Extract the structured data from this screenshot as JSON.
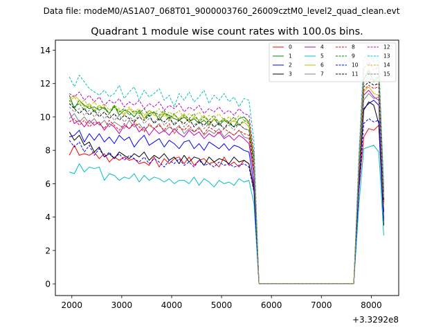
{
  "figure": {
    "suptitle": "Data file: modeM0/AS1A07_068T01_9000003760_26009cztM0_level2_quad_clean.evt"
  },
  "chart_data": {
    "type": "line",
    "title": "Quadrant 1 module wise count rates with 100.0s bins.",
    "xlabel": "",
    "ylabel": "",
    "x_offset_label": "+3.3292e8",
    "xlim": [
      1670,
      8550
    ],
    "ylim": [
      -0.7,
      14.6
    ],
    "xticks": [
      2000,
      3000,
      4000,
      5000,
      6000,
      7000,
      8000
    ],
    "yticks": [
      0,
      2,
      4,
      6,
      8,
      10,
      12,
      14
    ],
    "grid": false,
    "legend_position": "top-right",
    "x": [
      1950,
      2050,
      2150,
      2250,
      2350,
      2450,
      2550,
      2650,
      2750,
      2850,
      2950,
      3050,
      3150,
      3250,
      3350,
      3450,
      3550,
      3650,
      3750,
      3850,
      3950,
      4050,
      4150,
      4250,
      4350,
      4450,
      4550,
      4650,
      4750,
      4850,
      4950,
      5050,
      5150,
      5250,
      5350,
      5450,
      5550,
      5650,
      5750,
      5850,
      5950,
      6050,
      6150,
      6250,
      6350,
      6450,
      6550,
      6650,
      6750,
      6850,
      6950,
      7050,
      7150,
      7250,
      7350,
      7450,
      7550,
      7650,
      7750,
      7850,
      7950,
      8050,
      8150,
      8250
    ],
    "series": [
      {
        "name": "0",
        "color": "#ff0000",
        "dash": "solid",
        "values": [
          7.7,
          8.3,
          7.7,
          7.8,
          7.7,
          7.9,
          7.5,
          7.8,
          7.3,
          7.6,
          7.4,
          7.6,
          7.4,
          7.5,
          7.2,
          7.3,
          7.1,
          7.6,
          7.0,
          7.5,
          7.2,
          7.5,
          7.6,
          7.2,
          7.6,
          7.1,
          7.4,
          7.5,
          7.2,
          7.3,
          7.0,
          7.6,
          7.1,
          7.3,
          7.0,
          7.4,
          7.2,
          5.8,
          0.02,
          0.02,
          0.02,
          0.02,
          0.02,
          0.02,
          0.02,
          0.02,
          0.02,
          0.02,
          0.02,
          0.02,
          0.02,
          0.02,
          0.02,
          0.02,
          0.02,
          0.02,
          0.02,
          0.02,
          5.5,
          8.8,
          9.3,
          9.2,
          9.5,
          3.9
        ]
      },
      {
        "name": "1",
        "color": "#008000",
        "dash": "solid",
        "values": [
          11.3,
          10.5,
          11.0,
          10.7,
          10.5,
          10.6,
          10.4,
          10.6,
          10.2,
          10.7,
          10.1,
          10.4,
          10.3,
          10.0,
          10.4,
          9.9,
          10.2,
          10.3,
          9.8,
          10.2,
          10.1,
          9.9,
          9.8,
          10.0,
          9.7,
          9.9,
          9.6,
          9.8,
          9.5,
          9.9,
          9.5,
          9.8,
          9.6,
          9.4,
          9.9,
          10.0,
          9.7,
          7.5,
          0.02,
          0.02,
          0.02,
          0.02,
          0.02,
          0.02,
          0.02,
          0.02,
          0.02,
          0.02,
          0.02,
          0.02,
          0.02,
          0.02,
          0.02,
          0.02,
          0.02,
          0.02,
          0.02,
          0.02,
          6.8,
          12.2,
          12.8,
          12.1,
          12.4,
          5.5
        ]
      },
      {
        "name": "2",
        "color": "#0000ff",
        "dash": "solid",
        "values": [
          8.8,
          8.9,
          9.2,
          8.5,
          9.0,
          8.6,
          9.0,
          8.5,
          8.8,
          8.4,
          8.9,
          8.6,
          8.8,
          8.2,
          8.6,
          8.9,
          8.3,
          8.5,
          8.7,
          8.2,
          8.6,
          8.4,
          8.1,
          8.5,
          8.6,
          8.1,
          8.4,
          8.0,
          8.5,
          8.3,
          8.1,
          8.4,
          8.0,
          8.3,
          8.2,
          8.0,
          7.9,
          6.0,
          0.02,
          0.02,
          0.02,
          0.02,
          0.02,
          0.02,
          0.02,
          0.02,
          0.02,
          0.02,
          0.02,
          0.02,
          0.02,
          0.02,
          0.02,
          0.02,
          0.02,
          0.02,
          0.02,
          0.02,
          5.8,
          10.5,
          10.8,
          11.0,
          10.7,
          4.3
        ]
      },
      {
        "name": "3",
        "color": "#000000",
        "dash": "solid",
        "values": [
          9.1,
          8.6,
          8.9,
          8.3,
          8.5,
          7.9,
          8.2,
          7.6,
          7.8,
          7.5,
          7.9,
          7.7,
          7.5,
          7.8,
          7.6,
          7.9,
          7.4,
          7.7,
          7.5,
          7.8,
          7.4,
          7.6,
          7.2,
          7.7,
          7.3,
          7.6,
          7.5,
          7.1,
          7.6,
          7.3,
          7.5,
          7.4,
          7.2,
          7.6,
          7.3,
          7.4,
          7.2,
          5.6,
          0.02,
          0.02,
          0.02,
          0.02,
          0.02,
          0.02,
          0.02,
          0.02,
          0.02,
          0.02,
          0.02,
          0.02,
          0.02,
          0.02,
          0.02,
          0.02,
          0.02,
          0.02,
          0.02,
          0.02,
          5.9,
          10.4,
          10.9,
          10.7,
          9.6,
          3.5
        ]
      },
      {
        "name": "4",
        "color": "#bf00bf",
        "dash": "solid",
        "values": [
          10.3,
          9.6,
          9.8,
          9.4,
          9.8,
          9.5,
          9.7,
          9.2,
          9.6,
          9.4,
          9.0,
          9.5,
          9.3,
          9.6,
          9.1,
          9.4,
          8.9,
          9.3,
          9.0,
          9.2,
          8.9,
          9.3,
          9.0,
          8.8,
          9.2,
          8.9,
          9.1,
          8.7,
          9.0,
          8.8,
          9.1,
          8.7,
          8.9,
          8.6,
          8.9,
          8.7,
          8.4,
          6.5,
          0.02,
          0.02,
          0.02,
          0.02,
          0.02,
          0.02,
          0.02,
          0.02,
          0.02,
          0.02,
          0.02,
          0.02,
          0.02,
          0.02,
          0.02,
          0.02,
          0.02,
          0.02,
          0.02,
          0.02,
          6.2,
          11.3,
          11.6,
          11.2,
          11.0,
          4.6
        ]
      },
      {
        "name": "5",
        "color": "#00bfbf",
        "dash": "solid",
        "values": [
          6.7,
          6.6,
          7.2,
          6.7,
          7.0,
          6.9,
          7.0,
          6.2,
          6.6,
          6.5,
          6.2,
          6.4,
          6.3,
          6.6,
          6.1,
          6.5,
          6.2,
          6.4,
          6.3,
          6.1,
          6.3,
          6.0,
          6.2,
          6.2,
          6.0,
          6.4,
          5.9,
          6.3,
          6.1,
          5.8,
          6.2,
          6.0,
          6.1,
          5.9,
          6.3,
          6.1,
          6.2,
          4.8,
          0.02,
          0.02,
          0.02,
          0.02,
          0.02,
          0.02,
          0.02,
          0.02,
          0.02,
          0.02,
          0.02,
          0.02,
          0.02,
          0.02,
          0.02,
          0.02,
          0.02,
          0.02,
          0.02,
          0.02,
          4.6,
          8.1,
          8.2,
          8.3,
          7.9,
          2.9
        ]
      },
      {
        "name": "6",
        "color": "#bfbf00",
        "dash": "solid",
        "values": [
          11.1,
          11.3,
          11.0,
          10.6,
          10.8,
          10.4,
          10.7,
          10.5,
          10.2,
          10.6,
          10.4,
          10.1,
          10.5,
          10.2,
          10.3,
          9.9,
          10.4,
          10.1,
          10.0,
          10.3,
          9.8,
          10.1,
          9.9,
          10.2,
          9.7,
          10.0,
          9.8,
          10.1,
          9.6,
          9.9,
          9.7,
          9.9,
          9.6,
          9.8,
          9.5,
          9.7,
          9.4,
          7.3,
          0.02,
          0.02,
          0.02,
          0.02,
          0.02,
          0.02,
          0.02,
          0.02,
          0.02,
          0.02,
          0.02,
          0.02,
          0.02,
          0.02,
          0.02,
          0.02,
          0.02,
          0.02,
          0.02,
          0.02,
          6.6,
          11.5,
          11.8,
          11.4,
          11.3,
          4.6
        ]
      },
      {
        "name": "7",
        "color": "#808080",
        "dash": "solid",
        "values": [
          9.9,
          10.2,
          9.7,
          10.0,
          9.6,
          9.9,
          9.5,
          9.8,
          9.4,
          9.7,
          9.5,
          9.3,
          9.8,
          9.4,
          9.6,
          9.2,
          9.5,
          9.3,
          9.6,
          9.1,
          9.4,
          9.2,
          9.5,
          9.0,
          9.3,
          9.1,
          9.4,
          8.9,
          9.2,
          9.0,
          9.3,
          8.8,
          9.1,
          8.9,
          9.2,
          8.8,
          8.7,
          6.7,
          0.02,
          0.02,
          0.02,
          0.02,
          0.02,
          0.02,
          0.02,
          0.02,
          0.02,
          0.02,
          0.02,
          0.02,
          0.02,
          0.02,
          0.02,
          0.02,
          0.02,
          0.02,
          0.02,
          0.02,
          6.3,
          11.0,
          11.4,
          11.1,
          11.2,
          4.8
        ]
      },
      {
        "name": "8",
        "color": "#ff0000",
        "dash": "dashed",
        "values": [
          9.7,
          9.9,
          9.5,
          9.8,
          9.4,
          9.7,
          9.6,
          9.3,
          9.8,
          9.5,
          9.2,
          9.6,
          9.3,
          9.7,
          9.4,
          9.1,
          9.6,
          9.3,
          9.5,
          9.2,
          9.6,
          9.0,
          9.4,
          9.2,
          9.5,
          9.1,
          9.3,
          9.0,
          9.4,
          9.2,
          9.0,
          9.3,
          9.1,
          8.9,
          9.2,
          9.0,
          8.9,
          6.8,
          0.02,
          0.02,
          0.02,
          0.02,
          0.02,
          0.02,
          0.02,
          0.02,
          0.02,
          0.02,
          0.02,
          0.02,
          0.02,
          0.02,
          0.02,
          0.02,
          0.02,
          0.02,
          0.02,
          0.02,
          6.5,
          11.6,
          11.9,
          11.7,
          11.8,
          4.9
        ]
      },
      {
        "name": "9",
        "color": "#008000",
        "dash": "dashed",
        "values": [
          11.0,
          10.6,
          10.8,
          10.4,
          10.7,
          10.3,
          10.6,
          10.5,
          10.2,
          10.6,
          10.3,
          10.5,
          10.1,
          10.4,
          10.2,
          10.5,
          10.0,
          10.3,
          10.1,
          10.4,
          9.9,
          10.2,
          9.8,
          10.1,
          9.9,
          10.2,
          9.7,
          10.0,
          9.8,
          10.1,
          9.6,
          9.9,
          9.7,
          10.0,
          9.5,
          9.8,
          9.6,
          7.4,
          0.02,
          0.02,
          0.02,
          0.02,
          0.02,
          0.02,
          0.02,
          0.02,
          0.02,
          0.02,
          0.02,
          0.02,
          0.02,
          0.02,
          0.02,
          0.02,
          0.02,
          0.02,
          0.02,
          0.02,
          6.8,
          12.3,
          12.7,
          12.2,
          12.5,
          5.2
        ]
      },
      {
        "name": "10",
        "color": "#0000ff",
        "dash": "dashed",
        "values": [
          8.6,
          8.2,
          8.5,
          7.9,
          8.3,
          7.7,
          8.1,
          7.6,
          7.9,
          7.5,
          7.8,
          7.4,
          7.7,
          7.5,
          7.3,
          7.6,
          7.2,
          7.5,
          7.3,
          7.0,
          7.4,
          7.2,
          7.5,
          7.1,
          7.3,
          7.0,
          7.4,
          7.1,
          7.2,
          7.0,
          7.3,
          7.1,
          7.2,
          7.0,
          7.1,
          7.2,
          7.0,
          5.5,
          0.02,
          0.02,
          0.02,
          0.02,
          0.02,
          0.02,
          0.02,
          0.02,
          0.02,
          0.02,
          0.02,
          0.02,
          0.02,
          0.02,
          0.02,
          0.02,
          0.02,
          0.02,
          0.02,
          0.02,
          5.4,
          9.6,
          9.9,
          9.7,
          9.8,
          3.8
        ]
      },
      {
        "name": "11",
        "color": "#000000",
        "dash": "dashed",
        "values": [
          10.8,
          10.5,
          10.2,
          10.5,
          10.1,
          10.4,
          10.0,
          10.3,
          9.9,
          10.2,
          9.8,
          10.1,
          9.9,
          9.7,
          10.0,
          9.8,
          10.1,
          9.6,
          9.9,
          9.7,
          10.0,
          9.5,
          9.8,
          9.6,
          9.9,
          9.4,
          9.7,
          9.5,
          9.8,
          9.4,
          9.6,
          9.3,
          9.7,
          9.4,
          9.6,
          9.3,
          9.2,
          7.1,
          0.02,
          0.02,
          0.02,
          0.02,
          0.02,
          0.02,
          0.02,
          0.02,
          0.02,
          0.02,
          0.02,
          0.02,
          0.02,
          0.02,
          0.02,
          0.02,
          0.02,
          0.02,
          0.02,
          0.02,
          6.6,
          11.8,
          12.1,
          11.9,
          12.0,
          5.0
        ]
      },
      {
        "name": "12",
        "color": "#bf00bf",
        "dash": "dashed",
        "values": [
          11.4,
          11.2,
          11.5,
          11.0,
          11.3,
          10.9,
          11.2,
          10.7,
          11.0,
          10.8,
          11.1,
          10.6,
          10.9,
          10.7,
          11.0,
          10.5,
          10.8,
          10.6,
          10.9,
          10.4,
          10.7,
          10.5,
          10.8,
          10.3,
          10.6,
          10.4,
          10.7,
          10.2,
          10.5,
          10.3,
          10.6,
          10.2,
          10.4,
          10.1,
          10.5,
          10.2,
          10.1,
          7.8,
          0.02,
          0.02,
          0.02,
          0.02,
          0.02,
          0.02,
          0.02,
          0.02,
          0.02,
          0.02,
          0.02,
          0.02,
          0.02,
          0.02,
          0.02,
          0.02,
          0.02,
          0.02,
          0.02,
          0.02,
          7.2,
          12.9,
          13.3,
          12.8,
          13.0,
          5.6
        ]
      },
      {
        "name": "13",
        "color": "#00bfbf",
        "dash": "dashed",
        "values": [
          12.4,
          11.8,
          12.5,
          12.1,
          11.7,
          11.5,
          11.3,
          11.6,
          11.2,
          11.4,
          11.9,
          11.1,
          11.5,
          11.8,
          11.0,
          11.6,
          11.2,
          11.4,
          11.7,
          11.0,
          11.3,
          10.6,
          11.4,
          11.0,
          11.5,
          10.9,
          11.2,
          11.6,
          10.8,
          11.3,
          11.0,
          11.4,
          10.9,
          11.2,
          10.6,
          11.1,
          11.0,
          8.5,
          0.02,
          0.02,
          0.02,
          0.02,
          0.02,
          0.02,
          0.02,
          0.02,
          0.02,
          0.02,
          0.02,
          0.02,
          0.02,
          0.02,
          0.02,
          0.02,
          0.02,
          0.02,
          0.02,
          0.02,
          7.6,
          13.5,
          13.8,
          13.3,
          13.4,
          5.9
        ]
      },
      {
        "name": "14",
        "color": "#bfbf00",
        "dash": "dashed",
        "values": [
          10.9,
          11.2,
          10.8,
          11.0,
          10.6,
          10.9,
          10.5,
          10.8,
          10.4,
          10.7,
          10.5,
          10.2,
          10.6,
          10.3,
          10.5,
          10.1,
          10.4,
          10.2,
          10.5,
          10.0,
          10.3,
          10.1,
          10.4,
          9.9,
          10.2,
          10.0,
          10.3,
          9.8,
          10.1,
          9.9,
          10.2,
          9.8,
          10.0,
          9.7,
          10.1,
          9.8,
          9.7,
          7.5,
          0.02,
          0.02,
          0.02,
          0.02,
          0.02,
          0.02,
          0.02,
          0.02,
          0.02,
          0.02,
          0.02,
          0.02,
          0.02,
          0.02,
          0.02,
          0.02,
          0.02,
          0.02,
          0.02,
          0.02,
          6.9,
          12.4,
          12.9,
          12.5,
          12.6,
          5.3
        ]
      },
      {
        "name": "15",
        "color": "#808080",
        "dash": "dashed",
        "values": [
          10.6,
          10.3,
          10.5,
          10.1,
          10.4,
          10.0,
          10.3,
          9.9,
          10.2,
          9.8,
          10.1,
          9.7,
          10.0,
          9.8,
          10.1,
          9.6,
          9.9,
          9.7,
          10.0,
          9.5,
          9.8,
          9.6,
          9.9,
          9.4,
          9.7,
          9.5,
          9.8,
          9.3,
          9.6,
          9.4,
          9.7,
          9.3,
          9.5,
          9.2,
          9.6,
          9.3,
          9.2,
          7.1,
          0.02,
          0.02,
          0.02,
          0.02,
          0.02,
          0.02,
          0.02,
          0.02,
          0.02,
          0.02,
          0.02,
          0.02,
          0.02,
          0.02,
          0.02,
          0.02,
          0.02,
          0.02,
          0.02,
          0.02,
          6.7,
          12.0,
          12.4,
          12.1,
          12.2,
          5.1
        ]
      }
    ]
  }
}
